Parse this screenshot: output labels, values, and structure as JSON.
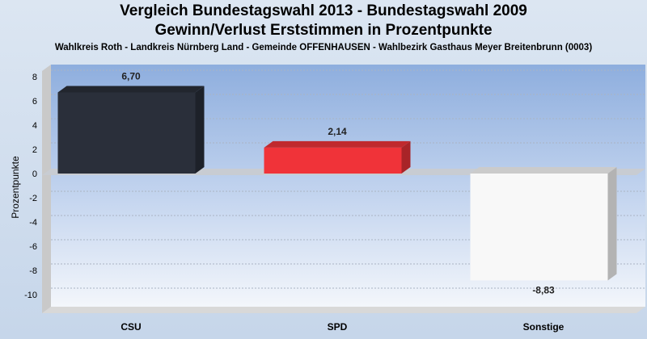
{
  "chart_data": {
    "type": "bar",
    "title": "Vergleich Bundestagswahl 2013  - Bundestagswahl 2009",
    "title_line2": "Gewinn/Verlust Erststimmen in Prozentpunkte",
    "subtitle": "Wahlkreis Roth - Landkreis Nürnberg Land - Gemeinde OFFENHAUSEN - Wahlbezirk Gasthaus Meyer Breitenbrunn (0003)",
    "xlabel": "",
    "ylabel": "Prozentpunkte",
    "categories": [
      "CSU",
      "SPD",
      "Sonstige"
    ],
    "values": [
      6.7,
      2.14,
      -8.83
    ],
    "value_labels": [
      "6,70",
      "2,14",
      "-8,83"
    ],
    "colors": [
      "#2a2f3a",
      "#f03339",
      "#f8f8f8"
    ],
    "ylim": [
      -11,
      9
    ],
    "yticks": [
      8,
      6,
      4,
      2,
      0,
      -2,
      -4,
      -6,
      -8,
      -10
    ],
    "grid": true,
    "legend": "none"
  }
}
